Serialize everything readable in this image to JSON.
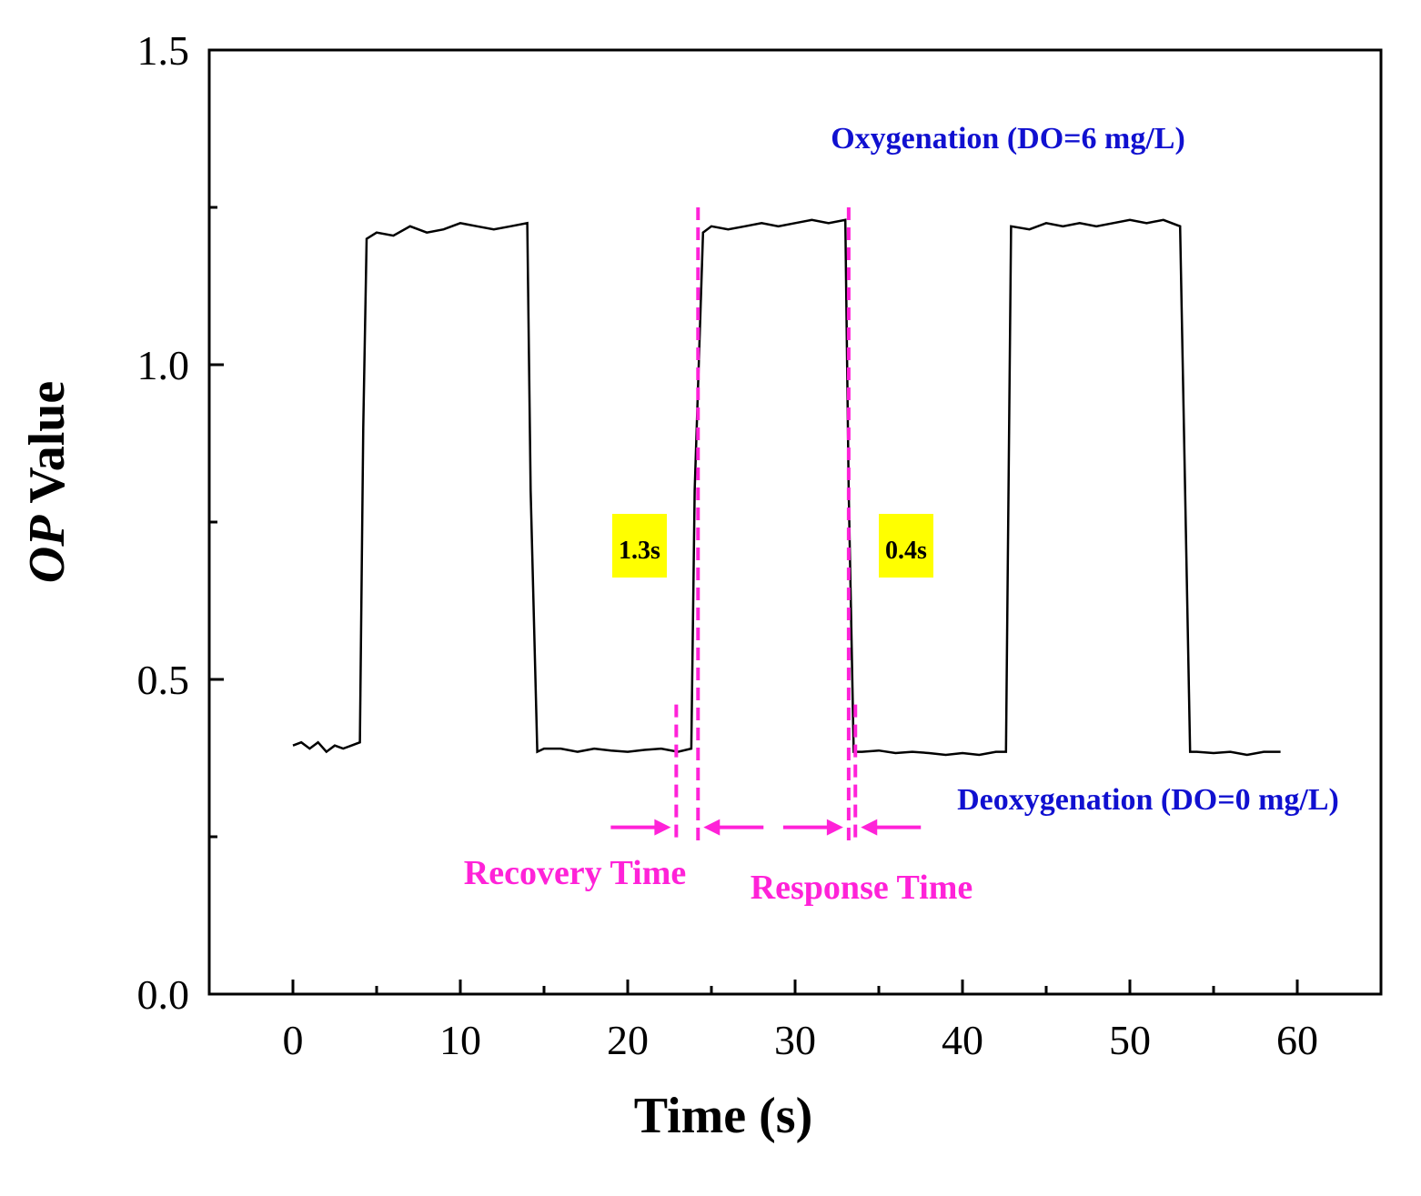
{
  "chart_data": {
    "type": "line",
    "title": "",
    "xlabel": "Time (s)",
    "ylabel_italic": "OP",
    "ylabel_rest": " Value",
    "xlim": [
      -5,
      65
    ],
    "ylim": [
      0.0,
      1.5
    ],
    "xticks": [
      0,
      10,
      20,
      30,
      40,
      50,
      60
    ],
    "xtick_labels": [
      "0",
      "10",
      "20",
      "30",
      "40",
      "50",
      "60"
    ],
    "yticks": [
      0.0,
      0.5,
      1.0,
      1.5
    ],
    "ytick_labels": [
      "0.0",
      "0.5",
      "1.0",
      "1.5"
    ],
    "series": [
      {
        "name": "OP",
        "color": "#000000",
        "x": [
          0,
          0.5,
          1,
          1.5,
          2,
          2.5,
          3,
          3.5,
          4,
          4.2,
          4.4,
          5,
          6,
          7,
          8,
          9,
          10,
          11,
          12,
          13,
          14,
          14.2,
          14.6,
          15,
          16,
          17,
          18,
          19,
          20,
          21,
          22,
          23,
          23.8,
          24.0,
          24.5,
          25,
          26,
          27,
          28,
          29,
          30,
          31,
          32,
          33,
          33.2,
          33.5,
          34,
          35,
          36,
          37,
          38,
          39,
          40,
          41,
          42,
          42.6,
          42.9,
          44,
          45,
          46,
          47,
          48,
          49,
          50,
          51,
          52,
          53,
          53.3,
          53.6,
          54,
          55,
          56,
          57,
          58,
          59
        ],
        "y": [
          0.395,
          0.4,
          0.39,
          0.4,
          0.385,
          0.395,
          0.39,
          0.395,
          0.4,
          0.9,
          1.2,
          1.21,
          1.205,
          1.22,
          1.21,
          1.215,
          1.225,
          1.22,
          1.215,
          1.22,
          1.225,
          0.8,
          0.385,
          0.39,
          0.39,
          0.385,
          0.39,
          0.387,
          0.385,
          0.388,
          0.39,
          0.385,
          0.39,
          0.8,
          1.21,
          1.22,
          1.215,
          1.22,
          1.225,
          1.22,
          1.225,
          1.23,
          1.225,
          1.23,
          0.8,
          0.385,
          0.385,
          0.387,
          0.383,
          0.385,
          0.383,
          0.38,
          0.383,
          0.38,
          0.385,
          0.385,
          1.22,
          1.215,
          1.225,
          1.22,
          1.225,
          1.22,
          1.225,
          1.23,
          1.225,
          1.23,
          1.22,
          0.8,
          0.385,
          0.385,
          0.383,
          0.385,
          0.38,
          0.385,
          0.385
        ]
      }
    ],
    "annotations": {
      "oxygenation": "Oxygenation (DO=6 mg/L)",
      "deoxygenation": "Deoxygenation (DO=0 mg/L)",
      "recovery_time_label": "Recovery Time",
      "response_time_label": "Response Time",
      "recovery_value": "1.3s",
      "response_value": "0.4s",
      "recovery_interval": [
        22.9,
        24.2
      ],
      "response_interval": [
        33.2,
        33.6
      ]
    },
    "colors": {
      "annotation_blue": "#1010d0",
      "annotation_magenta": "#ff22d8",
      "highlight_yellow": "#ffff00",
      "line": "#000000"
    }
  }
}
